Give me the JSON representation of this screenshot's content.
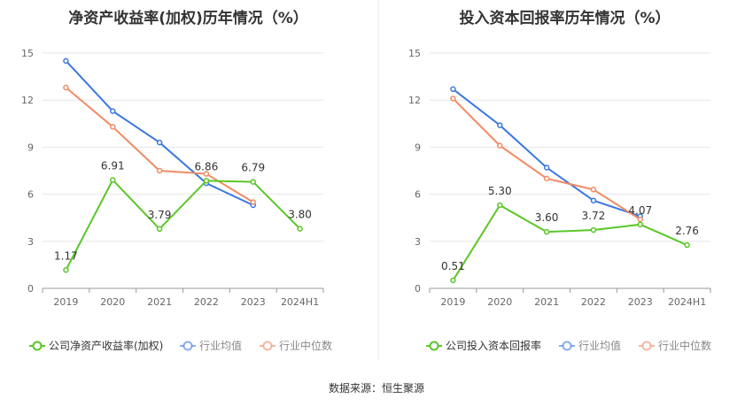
{
  "chart_data": [
    {
      "type": "line",
      "title": "净资产收益率(加权)历年情况（%）",
      "categories": [
        "2019",
        "2020",
        "2021",
        "2022",
        "2023",
        "2024H1"
      ],
      "ylim": [
        0,
        15
      ],
      "yticks": [
        "0",
        "3",
        "6",
        "9",
        "12",
        "15"
      ],
      "grid": true,
      "legend_position": "bottom",
      "series": [
        {
          "name": "公司净资产收益率(加权)",
          "color": "#5ac727",
          "values": [
            1.17,
            6.91,
            3.79,
            6.86,
            6.79,
            3.8
          ],
          "labels": [
            "1.17",
            "6.91",
            "3.79",
            "6.86",
            "6.79",
            "3.80"
          ]
        },
        {
          "name": "行业均值",
          "color": "#3b78e0",
          "values": [
            14.5,
            11.3,
            9.3,
            6.7,
            5.3,
            null
          ]
        },
        {
          "name": "行业中位数",
          "color": "#f08b62",
          "values": [
            12.8,
            10.3,
            7.5,
            7.3,
            5.5,
            null
          ]
        }
      ]
    },
    {
      "type": "line",
      "title": "投入资本回报率历年情况（%）",
      "categories": [
        "2019",
        "2020",
        "2021",
        "2022",
        "2023",
        "2024H1"
      ],
      "ylim": [
        0,
        15
      ],
      "yticks": [
        "0",
        "3",
        "6",
        "9",
        "12",
        "15"
      ],
      "grid": true,
      "legend_position": "bottom",
      "series": [
        {
          "name": "公司投入资本回报率",
          "color": "#5ac727",
          "values": [
            0.51,
            5.3,
            3.6,
            3.72,
            4.07,
            2.76
          ],
          "labels": [
            "0.51",
            "5.30",
            "3.60",
            "3.72",
            "4.07",
            "2.76"
          ]
        },
        {
          "name": "行业均值",
          "color": "#3b78e0",
          "values": [
            12.7,
            10.4,
            7.7,
            5.6,
            4.6,
            null
          ]
        },
        {
          "name": "行业中位数",
          "color": "#f08b62",
          "values": [
            12.1,
            9.1,
            7.0,
            6.3,
            4.4,
            null
          ]
        }
      ]
    }
  ],
  "footer": {
    "source": "数据来源：恒生聚源"
  }
}
